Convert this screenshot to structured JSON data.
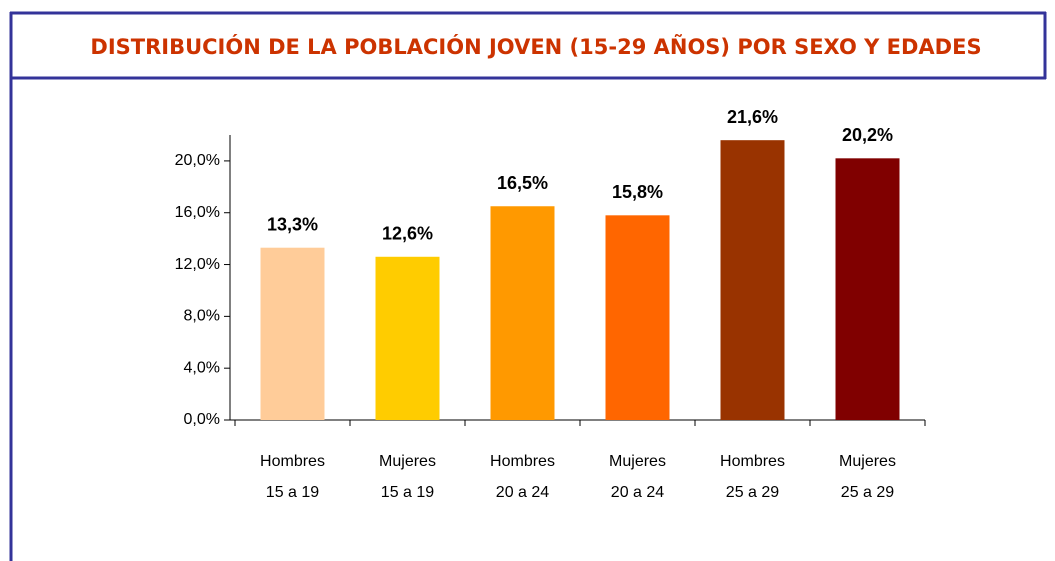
{
  "chart_data": {
    "type": "bar",
    "title": "DISTRIBUCIÓN DE LA POBLACIÓN JOVEN (15-29 AÑOS) POR SEXO Y EDADES",
    "categories": [
      [
        "Hombres",
        "15 a 19"
      ],
      [
        "Mujeres",
        "15 a 19"
      ],
      [
        "Hombres",
        "20 a 24"
      ],
      [
        "Mujeres",
        "20 a 24"
      ],
      [
        "Hombres",
        "25 a 29"
      ],
      [
        "Mujeres",
        "25 a 29"
      ]
    ],
    "values": [
      13.3,
      12.6,
      16.5,
      15.8,
      21.6,
      20.2
    ],
    "value_labels": [
      "13,3%",
      "12,6%",
      "16,5%",
      "15,8%",
      "21,6%",
      "20,2%"
    ],
    "colors": [
      "#ffcc99",
      "#ffcc00",
      "#ff9900",
      "#ff6600",
      "#993300",
      "#800000"
    ],
    "ylim": [
      0,
      22
    ],
    "yticks": [
      {
        "value": 0,
        "label": "0,0%"
      },
      {
        "value": 4,
        "label": "4,0%"
      },
      {
        "value": 8,
        "label": "8,0%"
      },
      {
        "value": 12,
        "label": "12,0%"
      },
      {
        "value": 16,
        "label": "16,0%"
      },
      {
        "value": 20,
        "label": "20,0%"
      }
    ],
    "grid": false
  }
}
